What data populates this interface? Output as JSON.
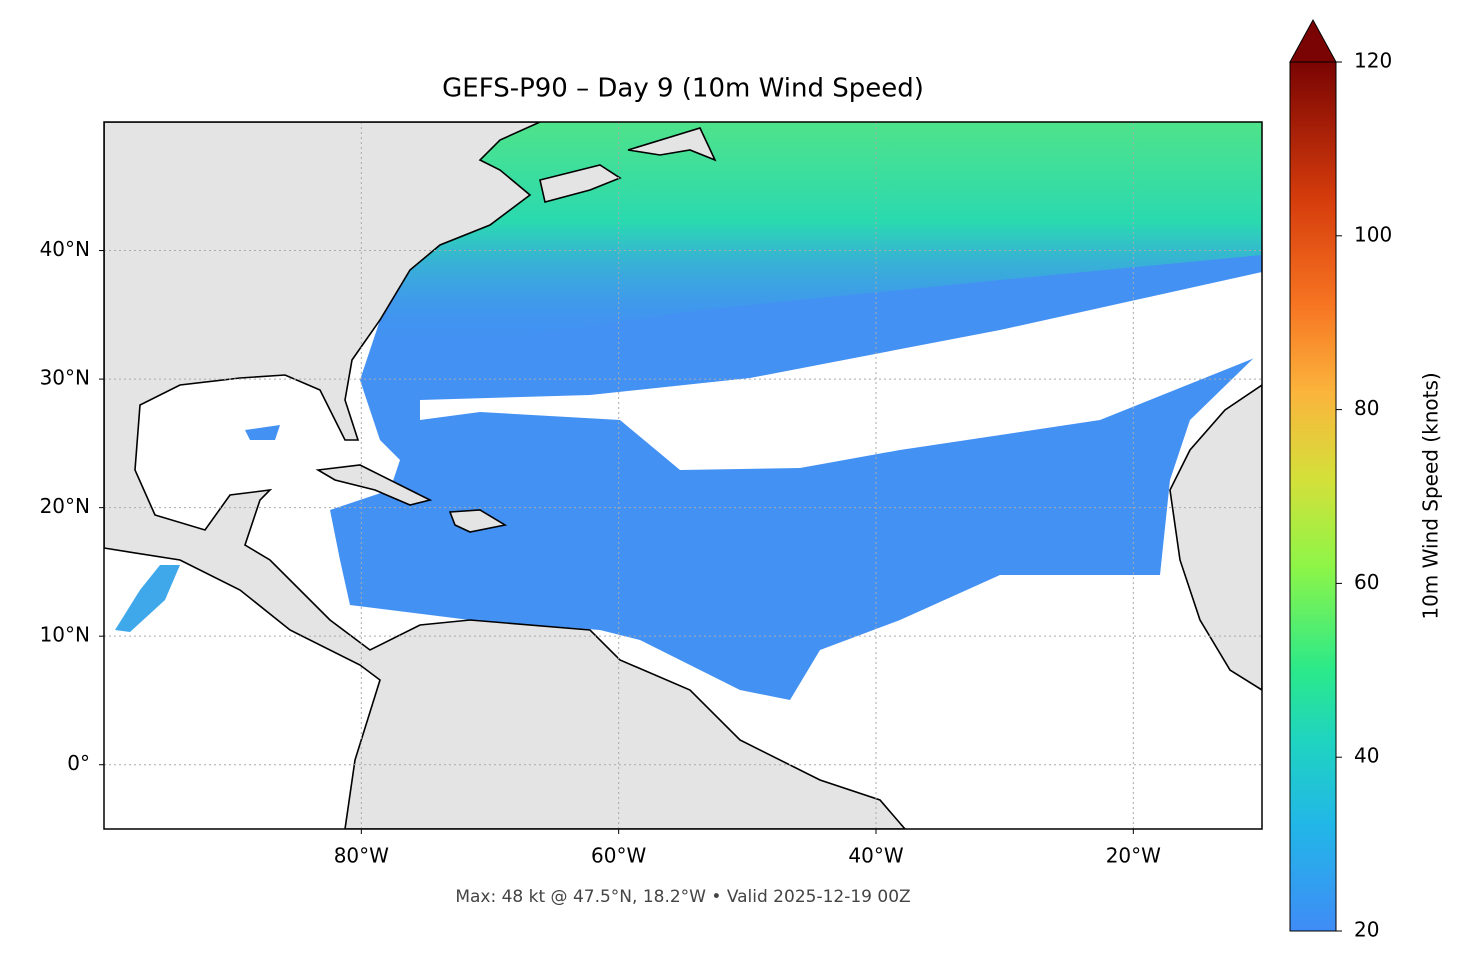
{
  "map": {
    "title": "GEFS-P90 – Day 9 (10m Wind Speed)",
    "footer": "Max: 48 kt @ 47.5°N, 18.2°W • Valid 2025-12-19 00Z",
    "lonlim": [
      -100,
      -10
    ],
    "latlim": [
      -5,
      50
    ],
    "lon_ticks": [
      {
        "value": -80,
        "label": "80°W"
      },
      {
        "value": -60,
        "label": "60°W"
      },
      {
        "value": -40,
        "label": "40°W"
      },
      {
        "value": -20,
        "label": "20°W"
      }
    ],
    "lat_ticks": [
      {
        "value": 0,
        "label": "0°"
      },
      {
        "value": 10,
        "label": "10°N"
      },
      {
        "value": 20,
        "label": "20°N"
      },
      {
        "value": 30,
        "label": "30°N"
      },
      {
        "value": 40,
        "label": "40°N"
      }
    ],
    "colorbar": {
      "label": "10m Wind Speed (knots)",
      "lim": [
        20,
        120
      ],
      "ticks": [
        20,
        40,
        60,
        80,
        100,
        120
      ]
    }
  }
}
